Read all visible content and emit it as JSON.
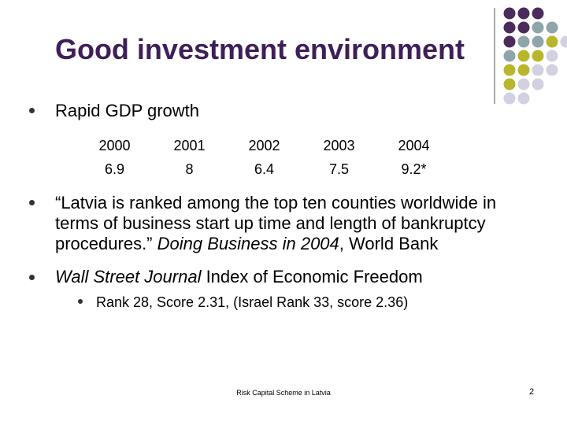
{
  "title": "Good investment environment",
  "bullets": [
    {
      "text": "Rapid GDP growth",
      "table": {
        "rows": [
          [
            "2000",
            "2001",
            "2002",
            "2003",
            "2004"
          ],
          [
            "6.9",
            "8",
            "6.4",
            "7.5",
            "9.2*"
          ]
        ]
      }
    },
    {
      "parts": [
        "“Latvia is ranked among the top ten counties worldwide in terms of business start up time and length of bankruptcy procedures.” ",
        "Doing Business in 2004",
        ", World Bank"
      ]
    },
    {
      "parts": [
        "Wall Street Journal",
        " Index of Economic Freedom"
      ],
      "sub_bullets": [
        "Rank 28, Score 2.31, (Israel Rank 33, score 2.36)"
      ]
    }
  ],
  "footer": {
    "text": "Risk Capital Scheme in Latvia",
    "page": "2"
  }
}
